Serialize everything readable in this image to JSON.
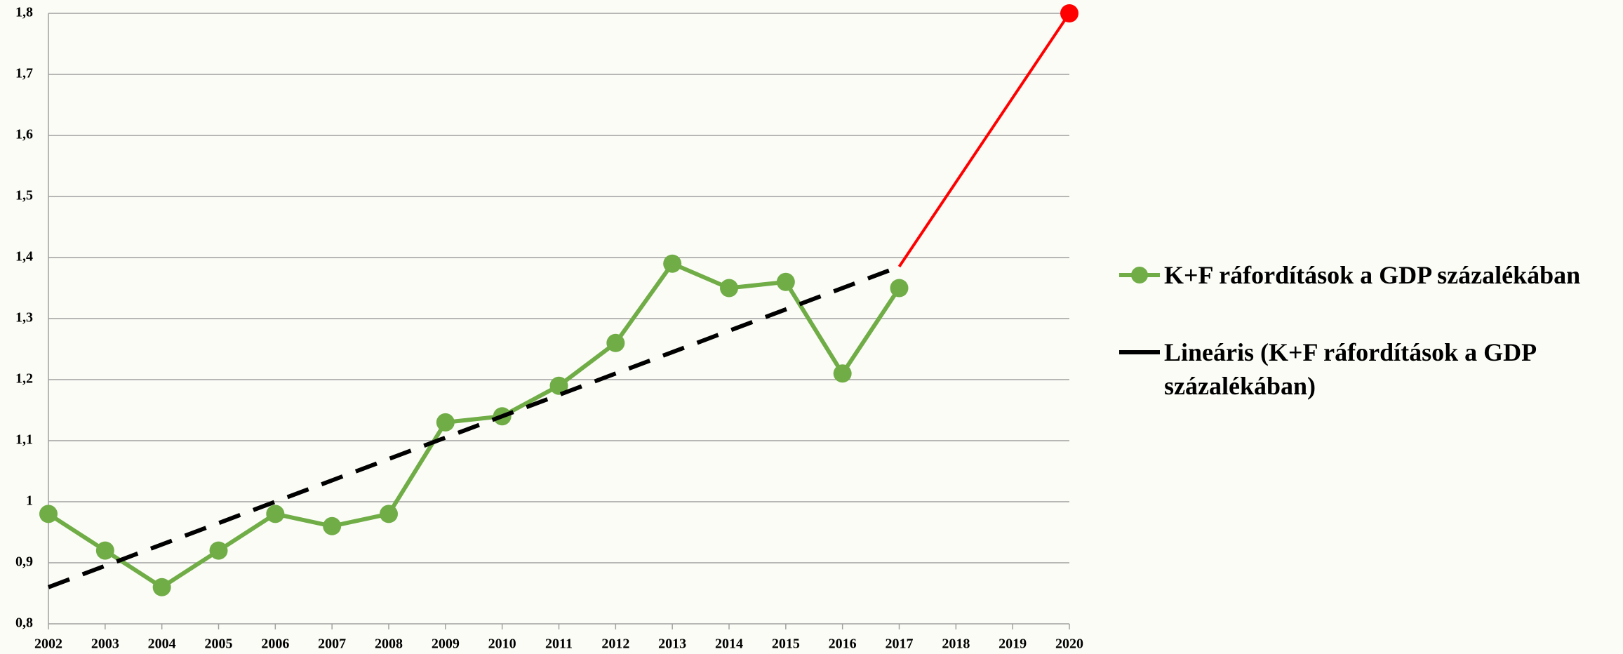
{
  "chart_data": {
    "type": "line",
    "xlim": [
      2002,
      2020
    ],
    "xticks": [
      2002,
      2003,
      2004,
      2005,
      2006,
      2007,
      2008,
      2009,
      2010,
      2011,
      2012,
      2013,
      2014,
      2015,
      2016,
      2017,
      2018,
      2019,
      2020
    ],
    "ylim": [
      0.8,
      1.8
    ],
    "yticks": [
      {
        "value": 0.8,
        "label": "0,8"
      },
      {
        "value": 0.9,
        "label": "0,9"
      },
      1,
      {
        "value": 1.1,
        "label": "1,1"
      },
      {
        "value": 1.2,
        "label": "1,2"
      },
      {
        "value": 1.3,
        "label": "1,3"
      },
      {
        "value": 1.4,
        "label": "1,4"
      },
      {
        "value": 1.5,
        "label": "1,5"
      },
      {
        "value": 1.6,
        "label": "1,6"
      },
      {
        "value": 1.7,
        "label": "1,7"
      },
      {
        "value": 1.8,
        "label": "1,8"
      }
    ],
    "grid": true,
    "legend": "right",
    "series": [
      {
        "name": "K+F ráfordítások a GDP százalékában",
        "color": "#70ad47",
        "marker": "all",
        "dash": false,
        "x": [
          2002,
          2003,
          2004,
          2005,
          2006,
          2007,
          2008,
          2009,
          2010,
          2011,
          2012,
          2013,
          2014,
          2015,
          2016,
          2017
        ],
        "values": [
          0.98,
          0.92,
          0.86,
          0.92,
          0.98,
          0.96,
          0.98,
          1.13,
          1.14,
          1.19,
          1.26,
          1.39,
          1.35,
          1.36,
          1.21,
          1.35
        ]
      },
      {
        "name": "Lineáris (K+F ráfordítások a GDP százalékában)",
        "color": "#000000",
        "marker": "none",
        "dash": true,
        "x": [
          2002,
          2017
        ],
        "values": [
          0.86,
          1.385
        ]
      },
      {
        "color": "#ff0000",
        "marker": "end",
        "dash": false,
        "x": [
          2017,
          2020
        ],
        "values": [
          1.385,
          1.8
        ]
      }
    ]
  }
}
